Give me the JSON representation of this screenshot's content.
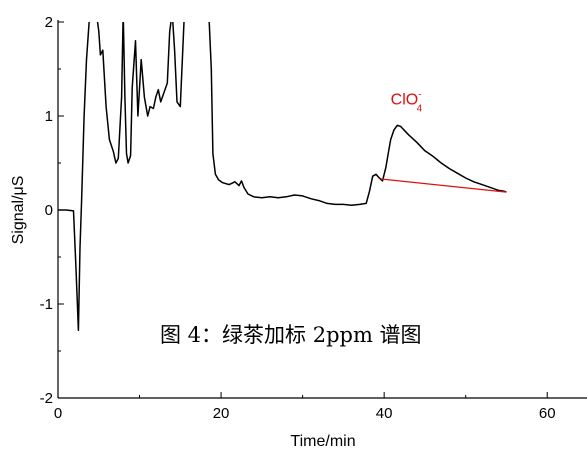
{
  "chart_data": {
    "type": "line",
    "xlabel": "Time/min",
    "ylabel": "Signal/μS",
    "xlim": [
      0,
      65
    ],
    "ylim": [
      -2,
      2
    ],
    "x_ticks": [
      0,
      20,
      40,
      60
    ],
    "y_ticks": [
      -2,
      -1,
      0,
      1,
      2
    ],
    "grid": false,
    "annotation": {
      "caption": "图 4：绿茶加标 2ppm 谱图"
    },
    "peak_label": {
      "base": "ClO",
      "subscript": "4",
      "superscript": "-",
      "x": 40.8,
      "y": 1.12,
      "color": "#dd1111"
    },
    "baseline_segment": {
      "x": [
        39.6,
        55.0
      ],
      "y": [
        0.33,
        0.19
      ],
      "color": "#dd1111"
    },
    "series": [
      {
        "color": "#000000",
        "x": [
          0,
          1.0,
          1.9,
          2.2,
          2.5,
          2.7,
          2.9,
          3.2,
          3.5,
          3.9,
          4.3,
          4.7,
          5.0,
          5.2,
          5.5,
          5.9,
          6.3,
          6.8,
          7.1,
          7.4,
          7.8,
          8.0,
          8.2,
          8.4,
          8.6,
          8.9,
          9.1,
          9.5,
          9.8,
          10.2,
          10.6,
          11.0,
          11.3,
          11.7,
          12.0,
          12.3,
          12.6,
          13.0,
          13.4,
          13.7,
          14.0,
          14.3,
          14.6,
          15.0,
          15.5,
          16.2,
          17.0,
          18.0,
          18.5,
          18.8,
          19.0,
          19.3,
          19.7,
          20.2,
          21.0,
          21.7,
          22.2,
          22.5,
          22.8,
          23.3,
          24.0,
          25.0,
          26.0,
          27.0,
          28.0,
          29.0,
          30.0,
          31.0,
          32.0,
          33.0,
          34.0,
          35.0,
          36.0,
          37.0,
          37.8,
          38.2,
          38.6,
          39.0,
          39.4,
          39.8,
          40.2,
          40.5,
          40.8,
          41.2,
          41.6,
          42.0,
          43.0,
          44.0,
          45.0,
          46.0,
          47.0,
          48.0,
          49.0,
          50.0,
          51.0,
          52.0,
          53.0,
          54.0,
          54.7,
          55.0
        ],
        "y": [
          0.0,
          0.0,
          -0.01,
          -0.6,
          -1.28,
          -0.4,
          0.1,
          1.0,
          1.6,
          2.1,
          2.1,
          2.1,
          1.9,
          1.65,
          1.7,
          1.1,
          0.75,
          0.62,
          0.5,
          0.55,
          1.2,
          2.1,
          1.2,
          0.6,
          0.5,
          0.58,
          1.3,
          1.8,
          1.0,
          1.6,
          1.2,
          1.0,
          1.1,
          1.08,
          1.2,
          1.28,
          1.15,
          1.25,
          1.35,
          1.9,
          2.1,
          1.7,
          1.15,
          1.1,
          2.1,
          2.1,
          2.1,
          2.1,
          2.1,
          1.5,
          0.6,
          0.38,
          0.32,
          0.29,
          0.27,
          0.3,
          0.26,
          0.31,
          0.24,
          0.17,
          0.14,
          0.13,
          0.14,
          0.13,
          0.14,
          0.16,
          0.15,
          0.12,
          0.1,
          0.07,
          0.06,
          0.06,
          0.05,
          0.06,
          0.07,
          0.2,
          0.36,
          0.38,
          0.34,
          0.31,
          0.45,
          0.6,
          0.75,
          0.85,
          0.9,
          0.89,
          0.8,
          0.72,
          0.63,
          0.57,
          0.5,
          0.44,
          0.39,
          0.34,
          0.3,
          0.27,
          0.24,
          0.21,
          0.2,
          0.19
        ]
      }
    ]
  }
}
